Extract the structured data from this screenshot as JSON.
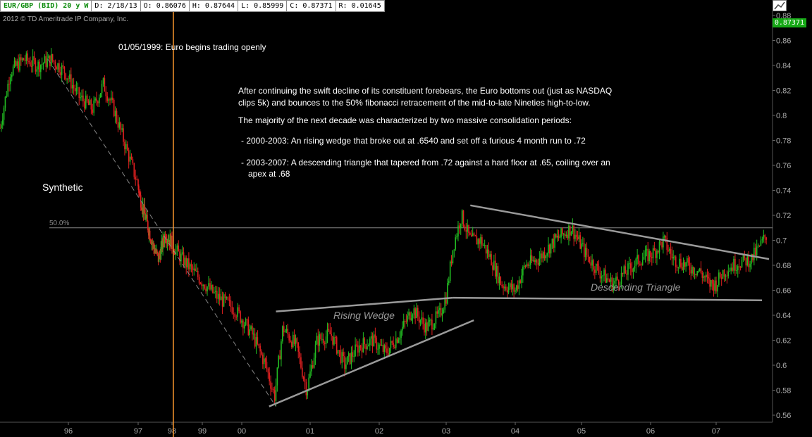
{
  "header": {
    "symbol": "EUR/GBP (BID) 20 y W",
    "date": "D: 2/18/13",
    "open": "O: 0.86076",
    "high": "H: 0.87644",
    "low": "L: 0.85999",
    "close": "C: 0.87371",
    "range": "R: 0.01645"
  },
  "copyright": "2012 © TD Ameritrade IP Company, Inc.",
  "last_price_badge": "0.87371",
  "notes": {
    "euro_launch": "01/05/1999: Euro begins trading openly",
    "para1_line1": "After continuing the swift decline of its constituent forebears, the Euro bottoms out (just as NASDAQ",
    "para1_line2": "clips 5k) and bounces to the 50% fibonacci retracement of the mid-to-late Nineties high-to-low.",
    "para2": "The majority of the next decade was characterized by two massive consolidation periods:",
    "bullet1": "- 2000-2003: An rising wedge that broke out at .6540 and set off a furious 4 month run to .72",
    "bullet2_line1": "- 2003-2007: A descending triangle that tapered from .72 against a hard floor at .65, coiling over an",
    "bullet2_line2": "apex at .68"
  },
  "labels": {
    "synthetic": "Synthetic",
    "fib": "50.0%",
    "rising_wedge": "Rising Wedge",
    "descending_triangle": "Descending Triangle"
  },
  "colors": {
    "up": "#22bb22",
    "down": "#e02020",
    "vline": "#ff9a2e",
    "trend": "#9a9a9a",
    "axis_text": "#aaaaaa"
  },
  "chart_data": {
    "type": "candlestick",
    "title": "EUR/GBP (BID) 20 y W",
    "ylim": [
      0.555,
      0.885
    ],
    "y_ticks": [
      0.88,
      0.86,
      0.84,
      0.82,
      0.8,
      0.78,
      0.76,
      0.74,
      0.72,
      0.7,
      0.68,
      0.66,
      0.64,
      0.62,
      0.6,
      0.58,
      0.56
    ],
    "x_ticks": [
      {
        "label": "96",
        "year": 1996.0
      },
      {
        "label": "97",
        "year": 1997.0
      },
      {
        "label": "98",
        "year": 1998.0
      },
      {
        "label": "99",
        "year": 1998.45
      },
      {
        "label": "00",
        "year": 1999.0
      },
      {
        "label": "01",
        "year": 2000.0
      },
      {
        "label": "02",
        "year": 2001.0
      },
      {
        "label": "03",
        "year": 2002.0
      },
      {
        "label": "04",
        "year": 2003.0
      },
      {
        "label": "05",
        "year": 2004.0
      },
      {
        "label": "06",
        "year": 2005.0
      },
      {
        "label": "07",
        "year": 2006.0
      }
    ],
    "xlim": [
      1995.0,
      2006.8
    ],
    "price_path": [
      [
        1995.0,
        0.79
      ],
      [
        1995.15,
        0.835
      ],
      [
        1995.35,
        0.845
      ],
      [
        1995.55,
        0.84
      ],
      [
        1995.75,
        0.845
      ],
      [
        1995.95,
        0.835
      ],
      [
        1996.15,
        0.815
      ],
      [
        1996.35,
        0.805
      ],
      [
        1996.5,
        0.825
      ],
      [
        1996.65,
        0.805
      ],
      [
        1996.85,
        0.77
      ],
      [
        1997.05,
        0.735
      ],
      [
        1997.25,
        0.715
      ],
      [
        1997.45,
        0.695
      ],
      [
        1997.6,
        0.685
      ],
      [
        1997.8,
        0.705
      ],
      [
        1997.95,
        0.7
      ],
      [
        1998.15,
        0.685
      ],
      [
        1998.4,
        0.67
      ],
      [
        1998.65,
        0.655
      ],
      [
        1998.9,
        0.645
      ],
      [
        1999.15,
        0.625
      ],
      [
        1999.35,
        0.6
      ],
      [
        1999.48,
        0.575
      ],
      [
        1999.6,
        0.63
      ],
      [
        1999.8,
        0.615
      ],
      [
        1999.95,
        0.58
      ],
      [
        2000.1,
        0.62
      ],
      [
        2000.3,
        0.625
      ],
      [
        2000.5,
        0.6
      ],
      [
        2000.7,
        0.615
      ],
      [
        2000.9,
        0.62
      ],
      [
        2001.1,
        0.61
      ],
      [
        2001.3,
        0.625
      ],
      [
        2001.5,
        0.645
      ],
      [
        2001.7,
        0.63
      ],
      [
        2001.9,
        0.64
      ],
      [
        2002.0,
        0.655
      ],
      [
        2002.1,
        0.695
      ],
      [
        2002.22,
        0.72
      ],
      [
        2002.35,
        0.7
      ],
      [
        2002.5,
        0.7
      ],
      [
        2002.65,
        0.685
      ],
      [
        2002.8,
        0.665
      ],
      [
        2003.0,
        0.66
      ],
      [
        2003.15,
        0.68
      ],
      [
        2003.35,
        0.685
      ],
      [
        2003.6,
        0.7
      ],
      [
        2003.85,
        0.71
      ],
      [
        2004.05,
        0.69
      ],
      [
        2004.25,
        0.675
      ],
      [
        2004.45,
        0.665
      ],
      [
        2004.65,
        0.675
      ],
      [
        2004.85,
        0.685
      ],
      [
        2005.05,
        0.69
      ],
      [
        2005.2,
        0.7
      ],
      [
        2005.35,
        0.685
      ],
      [
        2005.55,
        0.68
      ],
      [
        2005.75,
        0.675
      ],
      [
        2005.9,
        0.665
      ],
      [
        2006.0,
        0.665
      ],
      [
        2006.1,
        0.675
      ],
      [
        2006.3,
        0.682
      ],
      [
        2006.5,
        0.685
      ],
      [
        2006.62,
        0.695
      ],
      [
        2006.72,
        0.705
      ]
    ],
    "vertical_marker": {
      "year": 1998.02,
      "label": "01/05/1999"
    },
    "fib_level": {
      "price": 0.71,
      "label": "50.0%"
    },
    "trendlines": [
      {
        "name": "rising_wedge_upper",
        "from": [
          1999.5,
          0.643
        ],
        "to": [
          2002.1,
          0.654
        ]
      },
      {
        "name": "rising_wedge_lower",
        "from": [
          1999.4,
          0.567
        ],
        "to": [
          2002.4,
          0.636
        ]
      },
      {
        "name": "descending_triangle_upper",
        "from": [
          2002.35,
          0.728
        ],
        "to": [
          2006.75,
          0.685
        ]
      },
      {
        "name": "descending_triangle_floor",
        "from": [
          2002.1,
          0.654
        ],
        "to": [
          2006.65,
          0.652
        ]
      }
    ],
    "dashed_decline": {
      "from": [
        1995.7,
        0.845
      ],
      "to": [
        1999.5,
        0.567
      ]
    }
  }
}
